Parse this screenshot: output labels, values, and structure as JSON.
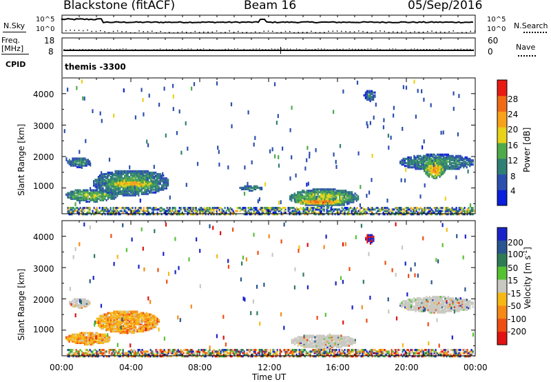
{
  "header": {
    "station": "Blackstone (fitACF)",
    "beam": "Beam 16",
    "date": "05/Sep/2016"
  },
  "top_panels": {
    "nsky_label": "N.Sky",
    "nsearch_label": "N.Search",
    "nsky_ticks": [
      "10^5",
      "10^0"
    ],
    "nsearch_ticks": [
      "10^5",
      "10^0"
    ],
    "freq_label": "Freq.",
    "freq_unit": "[MHz]",
    "freq_ticks": [
      "18",
      "8"
    ],
    "nave_label": "Nave",
    "nave_ticks": [
      "60",
      "0"
    ],
    "cpid_label": "CPID",
    "cpid_value": "themis -3300"
  },
  "chart_data": [
    {
      "type": "heatmap",
      "name": "power",
      "ylabel": "Slant Range [km]",
      "y_ticks": [
        "1000",
        "2000",
        "3000",
        "4000"
      ],
      "ylim": [
        180,
        4500
      ],
      "colorbar_label": "Power [dB]",
      "colorbar_ticks": [
        "4",
        "8",
        "12",
        "16",
        "20",
        "24",
        "28"
      ],
      "colorbar_range": [
        0,
        30
      ],
      "colors": [
        "#0a1edc",
        "#2c4fae",
        "#2f7f74",
        "#4faa4a",
        "#e8d21a",
        "#f7a21c",
        "#f06a16",
        "#e81a14"
      ],
      "regions": [
        {
          "t0": 0.3,
          "t1": 1.6,
          "r0": 1700,
          "r1": 2000,
          "level": 12
        },
        {
          "t0": 0.2,
          "t1": 3.2,
          "r0": 600,
          "r1": 1000,
          "level": 16
        },
        {
          "t0": 1.8,
          "t1": 6.2,
          "r0": 800,
          "r1": 1600,
          "level": 14
        },
        {
          "t0": 2.5,
          "t1": 5.4,
          "r0": 1050,
          "r1": 1300,
          "level": 22
        },
        {
          "t0": 10.3,
          "t1": 11.6,
          "r0": 950,
          "r1": 1100,
          "level": 12
        },
        {
          "t0": 13.2,
          "t1": 17.2,
          "r0": 450,
          "r1": 1000,
          "level": 17
        },
        {
          "t0": 13.5,
          "t1": 16.4,
          "r0": 500,
          "r1": 700,
          "level": 26
        },
        {
          "t0": 17.5,
          "t1": 18.2,
          "r0": 3800,
          "r1": 4150,
          "level": 10
        },
        {
          "t0": 19.6,
          "t1": 23.9,
          "r0": 1600,
          "r1": 2100,
          "level": 12
        },
        {
          "t0": 21.0,
          "t1": 22.2,
          "r0": 1350,
          "r1": 1900,
          "level": 22
        }
      ]
    },
    {
      "type": "heatmap",
      "name": "velocity",
      "ylabel": "Slant Range [km]",
      "y_ticks": [
        "1000",
        "2000",
        "3000",
        "4000"
      ],
      "ylim": [
        180,
        4500
      ],
      "colorbar_label": "Velocity [m s",
      "colorbar_label_sup": "-1",
      "colorbar_label_end": "]",
      "colorbar_ticks": [
        "200",
        "100",
        "50",
        "15",
        "-15",
        "-50",
        "-100",
        "-200"
      ],
      "colors": [
        "#1a23c8",
        "#28548f",
        "#2e7b55",
        "#56c232",
        "#c8c8c0",
        "#f5b815",
        "#f68a16",
        "#ee4e12",
        "#e01212"
      ],
      "regions": [
        {
          "t0": 0.4,
          "t1": 1.6,
          "r0": 1750,
          "r1": 2050,
          "level": "gray"
        },
        {
          "t0": 0.2,
          "t1": 2.8,
          "r0": 580,
          "r1": 950,
          "level": "orange"
        },
        {
          "t0": 1.9,
          "t1": 5.6,
          "r0": 950,
          "r1": 1650,
          "level": "orange"
        },
        {
          "t0": 13.3,
          "t1": 17.0,
          "r0": 450,
          "r1": 900,
          "level": "gray"
        },
        {
          "t0": 19.6,
          "t1": 23.9,
          "r0": 1600,
          "r1": 2100,
          "level": "gray"
        },
        {
          "t0": 17.6,
          "t1": 18.1,
          "r0": 3800,
          "r1": 4100,
          "level": "red"
        }
      ]
    }
  ],
  "x_axis": {
    "ticks": [
      "00:00",
      "04:00",
      "08:00",
      "12:00",
      "16:00",
      "20:00",
      "00:00"
    ],
    "label": "Time UT"
  }
}
